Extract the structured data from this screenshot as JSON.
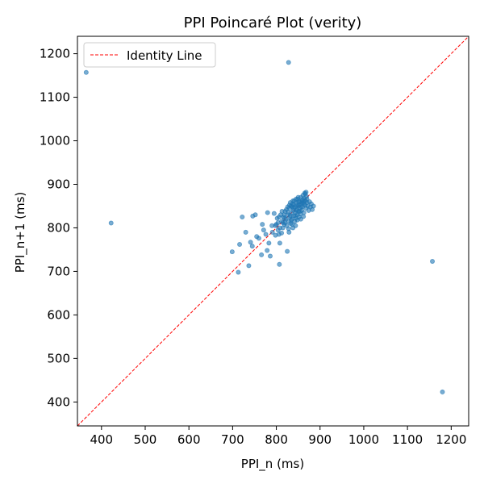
{
  "chart_data": {
    "type": "scatter",
    "title": "PPI Poincaré Plot (verity)",
    "xlabel": "PPI_n (ms)",
    "ylabel": "PPI_n+1 (ms)",
    "xlim": [
      345,
      1240
    ],
    "ylim": [
      345,
      1240
    ],
    "xticks": [
      400,
      500,
      600,
      700,
      800,
      900,
      1000,
      1100,
      1200
    ],
    "yticks": [
      400,
      500,
      600,
      700,
      800,
      900,
      1000,
      1100,
      1200
    ],
    "grid": false,
    "legend_position": "top-left",
    "colors": {
      "points": "#1f77b4",
      "identity": "#ff0000"
    },
    "series": [
      {
        "name": "",
        "kind": "scatter",
        "points": [
          [
            365,
            1157
          ],
          [
            828,
            1180
          ],
          [
            422,
            811
          ],
          [
            1157,
            723
          ],
          [
            1180,
            423
          ],
          [
            699,
            745
          ],
          [
            713,
            698
          ],
          [
            716,
            762
          ],
          [
            722,
            825
          ],
          [
            730,
            790
          ],
          [
            737,
            713
          ],
          [
            741,
            767
          ],
          [
            745,
            758
          ],
          [
            746,
            827
          ],
          [
            752,
            830
          ],
          [
            755,
            780
          ],
          [
            760,
            776
          ],
          [
            766,
            738
          ],
          [
            768,
            808
          ],
          [
            771,
            795
          ],
          [
            776,
            785
          ],
          [
            779,
            748
          ],
          [
            780,
            835
          ],
          [
            783,
            765
          ],
          [
            786,
            735
          ],
          [
            790,
            805
          ],
          [
            791,
            790
          ],
          [
            795,
            833
          ],
          [
            798,
            783
          ],
          [
            800,
            808
          ],
          [
            802,
            822
          ],
          [
            804,
            795
          ],
          [
            806,
            785
          ],
          [
            807,
            716
          ],
          [
            808,
            765
          ],
          [
            810,
            830
          ],
          [
            812,
            815
          ],
          [
            813,
            838
          ],
          [
            815,
            800
          ],
          [
            816,
            825
          ],
          [
            818,
            808
          ],
          [
            820,
            838
          ],
          [
            822,
            820
          ],
          [
            824,
            805
          ],
          [
            825,
            746
          ],
          [
            826,
            830
          ],
          [
            828,
            815
          ],
          [
            829,
            790
          ],
          [
            830,
            845
          ],
          [
            831,
            825
          ],
          [
            833,
            810
          ],
          [
            834,
            850
          ],
          [
            835,
            835
          ],
          [
            836,
            820
          ],
          [
            837,
            855
          ],
          [
            838,
            800
          ],
          [
            839,
            840
          ],
          [
            840,
            828
          ],
          [
            841,
            862
          ],
          [
            842,
            815
          ],
          [
            843,
            848
          ],
          [
            844,
            835
          ],
          [
            845,
            822
          ],
          [
            846,
            858
          ],
          [
            847,
            842
          ],
          [
            848,
            830
          ],
          [
            849,
            866
          ],
          [
            850,
            850
          ],
          [
            851,
            838
          ],
          [
            852,
            825
          ],
          [
            853,
            860
          ],
          [
            854,
            845
          ],
          [
            855,
            832
          ],
          [
            856,
            870
          ],
          [
            857,
            855
          ],
          [
            858,
            840
          ],
          [
            859,
            862
          ],
          [
            860,
            848
          ],
          [
            861,
            875
          ],
          [
            862,
            858
          ],
          [
            863,
            835
          ],
          [
            864,
            868
          ],
          [
            865,
            880
          ],
          [
            866,
            852
          ],
          [
            867,
            862
          ],
          [
            868,
            845
          ],
          [
            869,
            872
          ],
          [
            870,
            858
          ],
          [
            872,
            850
          ],
          [
            874,
            840
          ],
          [
            876,
            860
          ],
          [
            878,
            848
          ],
          [
            880,
            855
          ],
          [
            882,
            842
          ],
          [
            885,
            850
          ],
          [
            818,
            830
          ],
          [
            823,
            842
          ],
          [
            827,
            836
          ],
          [
            832,
            828
          ],
          [
            836,
            848
          ],
          [
            839,
            852
          ],
          [
            843,
            828
          ],
          [
            847,
            852
          ],
          [
            851,
            860
          ],
          [
            854,
            838
          ],
          [
            857,
            848
          ],
          [
            860,
            865
          ],
          [
            863,
            855
          ],
          [
            866,
            878
          ],
          [
            868,
            882
          ],
          [
            856,
            820
          ],
          [
            862,
            826
          ],
          [
            844,
            805
          ],
          [
            836,
            808
          ],
          [
            828,
            798
          ],
          [
            812,
            788
          ],
          [
            808,
            800
          ],
          [
            820,
            812
          ],
          [
            834,
            818
          ],
          [
            840,
            845
          ],
          [
            846,
            840
          ],
          [
            852,
            853
          ],
          [
            858,
            858
          ],
          [
            864,
            862
          ],
          [
            870,
            866
          ],
          [
            848,
            818
          ],
          [
            832,
            858
          ],
          [
            826,
            848
          ],
          [
            819,
            822
          ],
          [
            815,
            812
          ],
          [
            850,
            870
          ],
          [
            845,
            866
          ],
          [
            838,
            862
          ],
          [
            830,
            852
          ],
          [
            804,
            812
          ],
          [
            798,
            805
          ],
          [
            806,
            825
          ]
        ]
      },
      {
        "name": "Identity Line",
        "kind": "line",
        "x": [
          345,
          1240
        ],
        "y": [
          345,
          1240
        ]
      }
    ]
  }
}
